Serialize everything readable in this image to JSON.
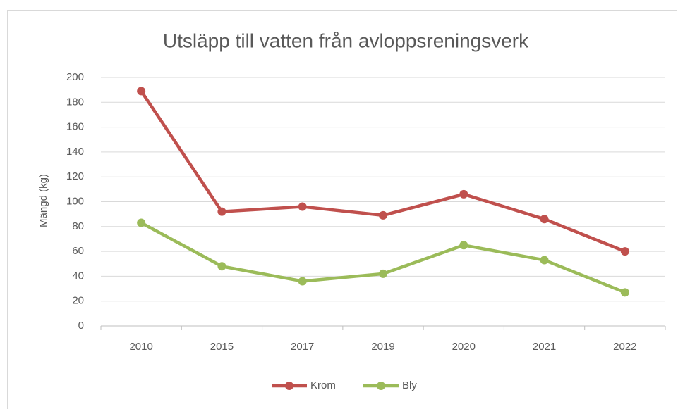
{
  "chart_data": {
    "type": "line",
    "title": "Utsläpp till vatten från avloppsreningsverk",
    "y_label": "Mängd (kg)",
    "categories": [
      "2010",
      "2015",
      "2017",
      "2019",
      "2020",
      "2021",
      "2022"
    ],
    "series": [
      {
        "name": "Krom",
        "color": "#c0504d",
        "values": [
          189,
          92,
          96,
          89,
          106,
          86,
          60
        ]
      },
      {
        "name": "Bly",
        "color": "#9bbb59",
        "values": [
          83,
          48,
          36,
          42,
          65,
          53,
          27
        ]
      }
    ],
    "ylim": [
      0,
      200
    ],
    "yticks": [
      0,
      20,
      40,
      60,
      80,
      100,
      120,
      140,
      160,
      180,
      200
    ],
    "grid": true,
    "legend": "bottom"
  }
}
